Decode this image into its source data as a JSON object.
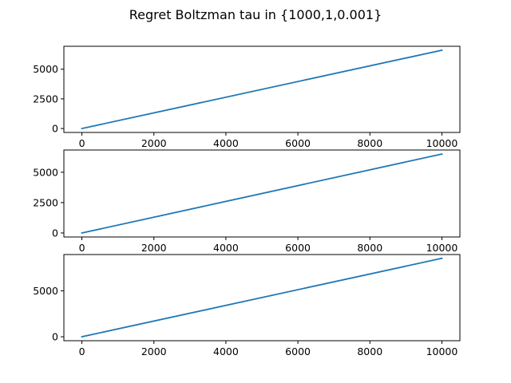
{
  "figure": {
    "title": "Regret Boltzman tau in {1000,1,0.001}"
  },
  "chart_data": [
    {
      "type": "line",
      "title": "",
      "xlabel": "",
      "ylabel": "",
      "xlim": [
        -500,
        10500
      ],
      "ylim": [
        -330,
        6930
      ],
      "xticks": [
        0,
        2000,
        4000,
        6000,
        8000,
        10000
      ],
      "yticks": [
        0,
        2500,
        5000
      ],
      "grid": false,
      "series": [
        {
          "x": [
            0,
            10000
          ],
          "y": [
            0,
            6600
          ],
          "color": "#1f77b4"
        }
      ]
    },
    {
      "type": "line",
      "title": "",
      "xlabel": "",
      "ylabel": "",
      "xlim": [
        -500,
        10500
      ],
      "ylim": [
        -330,
        6830
      ],
      "xticks": [
        0,
        2000,
        4000,
        6000,
        8000,
        10000
      ],
      "yticks": [
        0,
        2500,
        5000
      ],
      "grid": false,
      "series": [
        {
          "x": [
            0,
            10000
          ],
          "y": [
            0,
            6500
          ],
          "color": "#1f77b4"
        }
      ]
    },
    {
      "type": "line",
      "title": "",
      "xlabel": "",
      "ylabel": "",
      "xlim": [
        -500,
        10500
      ],
      "ylim": [
        -430,
        8960
      ],
      "xticks": [
        0,
        2000,
        4000,
        6000,
        8000,
        10000
      ],
      "yticks": [
        0,
        5000
      ],
      "grid": false,
      "series": [
        {
          "x": [
            0,
            10000
          ],
          "y": [
            0,
            8550
          ],
          "color": "#1f77b4"
        }
      ]
    }
  ]
}
